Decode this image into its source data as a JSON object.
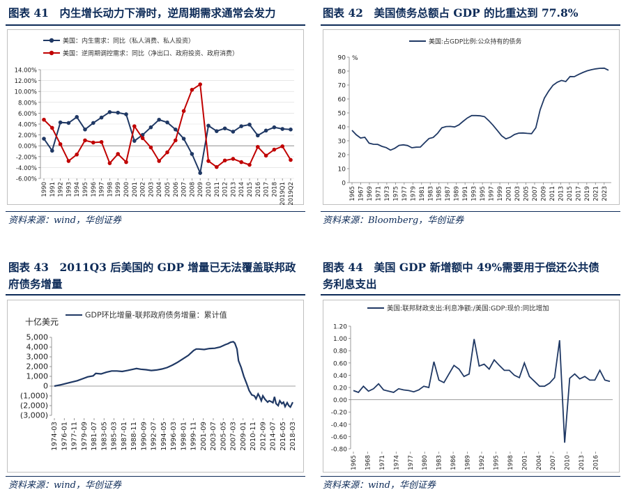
{
  "colors": {
    "navy": "#0c2a57",
    "line_navy": "#1f3864",
    "red": "#c00000",
    "grid": "#d9d9d9"
  },
  "panels": [
    {
      "title": "图表 41　内生增长动力下滑时，逆周期需求通常会发力",
      "source": "资料来源：wind，华创证券"
    },
    {
      "title": "图表 42　美国债务总额占 GDP 的比重达到 77.8%",
      "source": "资料来源：Bloomberg，华创证券"
    },
    {
      "title_line1": "图表 43　2011Q3 后美国的 GDP 增量已无法覆盖联邦政",
      "title_line2": "府债务增量",
      "source": "资料来源：wind，华创证券"
    },
    {
      "title_line1": "图表 44　美国 GDP 新增额中 49%需要用于偿还公共债",
      "title_line2": "务利息支出",
      "source": "资料来源：wind，华创证券"
    }
  ],
  "chart_data": [
    {
      "type": "line",
      "x": [
        "1990",
        "1991",
        "1992",
        "1993",
        "1994",
        "1995",
        "1996",
        "1997",
        "1998",
        "1999",
        "2000",
        "2001",
        "2002",
        "2003",
        "2004",
        "2005",
        "2006",
        "2007",
        "2008",
        "2009",
        "2010",
        "2011",
        "2012",
        "2013",
        "2014",
        "2015",
        "2016",
        "2017",
        "2018",
        "2019Q1",
        "2019Q2"
      ],
      "x_ticks": [
        "1990",
        "1991",
        "1992",
        "1993",
        "1994",
        "1995",
        "1996",
        "1997",
        "1998",
        "1999",
        "2000",
        "2001",
        "2002",
        "2003",
        "2004",
        "2005",
        "2006",
        "2007",
        "2008",
        "2009",
        "2010",
        "2011",
        "2012",
        "2013",
        "2014",
        "2015",
        "2016",
        "2017",
        "2018",
        "2019Q1",
        "2019Q2"
      ],
      "series": [
        {
          "name": "美国：内生需求：同比（私人消费、私人投资）",
          "color": "#1f3864",
          "values": [
            1.3,
            -0.9,
            4.3,
            4.2,
            5.3,
            3.0,
            4.2,
            5.2,
            6.2,
            6.1,
            5.8,
            0.9,
            2.0,
            3.4,
            4.8,
            4.3,
            3.0,
            1.3,
            -1.5,
            -5.0,
            3.7,
            2.7,
            3.2,
            2.6,
            3.6,
            3.9,
            1.9,
            2.8,
            3.4,
            3.1,
            3.0
          ]
        },
        {
          "name": "美国：逆周期调控需求：同比（净出口、政府投资、政府消费）",
          "color": "#c00000",
          "values": [
            4.8,
            3.3,
            0.3,
            -2.8,
            -1.6,
            1.0,
            0.6,
            0.7,
            -3.2,
            -1.5,
            -3.0,
            3.6,
            1.4,
            -0.3,
            -2.8,
            -1.2,
            1.0,
            6.4,
            10.3,
            11.3,
            -2.8,
            -3.9,
            -2.7,
            -2.4,
            -3.0,
            -3.5,
            -0.2,
            -1.8,
            -0.7,
            -0.1,
            -2.6
          ]
        }
      ],
      "ylim": [
        -6,
        14
      ],
      "yticks": [
        "14.00%",
        "12.00%",
        "10.00%",
        "8.00%",
        "6.00%",
        "4.00%",
        "2.00%",
        "0.00%",
        "-2.00%",
        "-4.00%",
        "-6.00%"
      ]
    },
    {
      "type": "line",
      "x_start": 1965,
      "x_end": 2024,
      "x_ticks": [
        "1965",
        "1967",
        "1969",
        "1971",
        "1973",
        "1975",
        "1977",
        "1979",
        "1981",
        "1983",
        "1985",
        "1987",
        "1989",
        "1991",
        "1993",
        "1995",
        "1997",
        "1999",
        "2001",
        "2003",
        "2005",
        "2007",
        "2009",
        "2011",
        "2013",
        "2015",
        "2017",
        "2019",
        "2021",
        "2023"
      ],
      "series": [
        {
          "name": "美国:占GDP比例:公众持有的债务",
          "color": "#1f3864",
          "values": [
            37.5,
            34.3,
            32.0,
            32.5,
            28.3,
            27.5,
            27.4,
            26.0,
            25.1,
            23.3,
            24.6,
            26.7,
            27.1,
            26.6,
            25.0,
            25.4,
            25.5,
            28.6,
            31.6,
            32.4,
            35.3,
            39.3,
            40.2,
            40.3,
            39.9,
            41.4,
            44.0,
            46.4,
            48.1,
            48.1,
            47.9,
            47.3,
            44.4,
            41.1,
            37.4,
            33.6,
            31.4,
            32.5,
            34.5,
            35.5,
            35.6,
            35.3,
            35.1,
            39.3,
            52.2,
            60.6,
            65.6,
            69.8,
            72.0,
            73.3,
            72.5,
            76.1,
            76.0,
            77.6,
            79.0,
            80.2,
            81.0,
            81.6,
            82.0,
            82.1,
            80.6
          ]
        }
      ],
      "ylim": [
        0,
        90
      ],
      "yticks": [
        "90",
        "80",
        "70",
        "60",
        "50",
        "40",
        "30",
        "20",
        "10",
        "0"
      ],
      "unit": "%"
    },
    {
      "type": "line",
      "x_ticks": [
        "1974-03",
        "1976-01",
        "1977-11",
        "1979-09",
        "1981-07",
        "1983-05",
        "1985-03",
        "1987-01",
        "1988-11",
        "1990-09",
        "1992-07",
        "1994-05",
        "1996-03",
        "1998-01",
        "1999-11",
        "2001-09",
        "2003-07",
        "2005-05",
        "2007-03",
        "2009-01",
        "2010-11",
        "2012-09",
        "2014-07",
        "2016-05",
        "2018-03"
      ],
      "x_start": 1974.17,
      "x_end": 2019.25,
      "points": [
        [
          1974.17,
          0
        ],
        [
          1975.5,
          150
        ],
        [
          1977,
          350
        ],
        [
          1978.5,
          550
        ],
        [
          1979.5,
          750
        ],
        [
          1980.5,
          950
        ],
        [
          1981.5,
          1050
        ],
        [
          1982,
          1300
        ],
        [
          1983,
          1250
        ],
        [
          1984,
          1420
        ],
        [
          1985,
          1550
        ],
        [
          1986,
          1550
        ],
        [
          1987,
          1500
        ],
        [
          1988,
          1600
        ],
        [
          1989,
          1720
        ],
        [
          1989.7,
          1800
        ],
        [
          1990.5,
          1730
        ],
        [
          1991.5,
          1680
        ],
        [
          1992.5,
          1600
        ],
        [
          1993.5,
          1650
        ],
        [
          1994.5,
          1750
        ],
        [
          1995.5,
          1900
        ],
        [
          1996.5,
          2150
        ],
        [
          1997.5,
          2450
        ],
        [
          1998.5,
          2800
        ],
        [
          1999.5,
          3150
        ],
        [
          2000.5,
          3650
        ],
        [
          2001,
          3800
        ],
        [
          2001.5,
          3800
        ],
        [
          2002.5,
          3750
        ],
        [
          2003.5,
          3850
        ],
        [
          2004.5,
          3880
        ],
        [
          2005.5,
          4000
        ],
        [
          2006.5,
          4250
        ],
        [
          2007,
          4350
        ],
        [
          2007.5,
          4500
        ],
        [
          2008,
          4550
        ],
        [
          2008.3,
          4400
        ],
        [
          2008.7,
          3800
        ],
        [
          2009,
          2600
        ],
        [
          2009.5,
          1900
        ],
        [
          2010,
          1000
        ],
        [
          2010.5,
          300
        ],
        [
          2011,
          -450
        ],
        [
          2011.5,
          -900
        ],
        [
          2012,
          -1000
        ],
        [
          2012.3,
          -1300
        ],
        [
          2012.7,
          -800
        ],
        [
          2013,
          -1100
        ],
        [
          2013.3,
          -1500
        ],
        [
          2013.6,
          -1000
        ],
        [
          2014,
          -1350
        ],
        [
          2014.5,
          -1650
        ],
        [
          2014.8,
          -1500
        ],
        [
          2015.2,
          -1600
        ],
        [
          2015.5,
          -1700
        ],
        [
          2015.8,
          -1100
        ],
        [
          2016.1,
          -1800
        ],
        [
          2016.5,
          -2000
        ],
        [
          2016.8,
          -1500
        ],
        [
          2017.2,
          -1800
        ],
        [
          2017.5,
          -1650
        ],
        [
          2017.8,
          -2100
        ],
        [
          2018.2,
          -1700
        ],
        [
          2018.5,
          -2000
        ],
        [
          2018.8,
          -2150
        ],
        [
          2019.25,
          -1650
        ]
      ],
      "series": [
        {
          "name": "GDP环比增量-联邦政府债务增量：累计值",
          "color": "#1f3864"
        }
      ],
      "ylim": [
        -3000,
        5000
      ],
      "yticks": [
        "5,000",
        "4,000",
        "3,000",
        "2,000",
        "1,000",
        "0",
        "(1,000)",
        "(2,000)",
        "(3,000)"
      ],
      "unit": "十亿美元"
    },
    {
      "type": "line",
      "x_start": 1965,
      "x_end": 2019,
      "x_ticks": [
        "1965",
        "1968",
        "1971",
        "1974",
        "1977",
        "1980",
        "1983",
        "1986",
        "1989",
        "1992",
        "1995",
        "1998",
        "2001",
        "2004",
        "2007",
        "2010",
        "2013",
        "2016"
      ],
      "series": [
        {
          "name": "美国:联邦财政支出:利息净额:/美国:GDP:现价:同比增加",
          "color": "#1f3864",
          "values": [
            0.15,
            0.12,
            0.22,
            0.14,
            0.18,
            0.26,
            0.16,
            0.14,
            0.12,
            0.18,
            0.16,
            0.15,
            0.13,
            0.16,
            0.22,
            0.2,
            0.62,
            0.32,
            0.28,
            0.42,
            0.56,
            0.5,
            0.38,
            0.42,
            0.99,
            0.55,
            0.58,
            0.5,
            0.65,
            0.56,
            0.48,
            0.48,
            0.4,
            0.36,
            0.6,
            0.38,
            0.3,
            0.22,
            0.22,
            0.27,
            0.36,
            0.97,
            -0.7,
            0.35,
            0.42,
            0.34,
            0.38,
            0.32,
            0.32,
            0.48,
            0.32,
            0.3
          ]
        }
      ],
      "ylim": [
        -0.8,
        1.2
      ],
      "yticks": [
        "1.20",
        "1.00",
        "0.80",
        "0.60",
        "0.40",
        "0.20",
        "0.00",
        "-0.20",
        "-0.40",
        "-0.60",
        "-0.80"
      ]
    }
  ]
}
